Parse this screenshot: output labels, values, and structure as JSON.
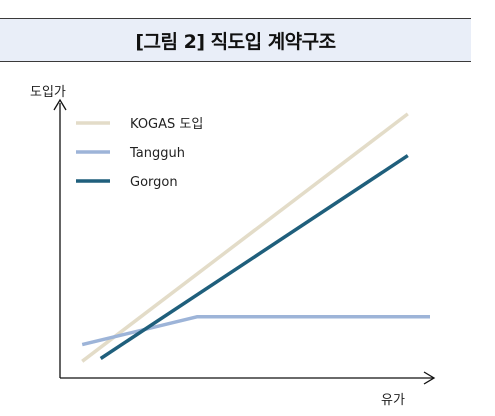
{
  "chart_data": {
    "type": "line",
    "title": "[그림 2] 직도입 계약구조",
    "xlabel": "유가",
    "ylabel": "도입가",
    "xlim": [
      0,
      100
    ],
    "ylim": [
      0,
      100
    ],
    "legend_position": "top-left",
    "series": [
      {
        "name": "KOGAS 도입",
        "color": "#e3dcc8",
        "x": [
          6,
          94
        ],
        "y": [
          6,
          95
        ]
      },
      {
        "name": "Tangguh",
        "color": "#9db4d8",
        "x": [
          6,
          37,
          100
        ],
        "y": [
          12,
          22,
          22
        ]
      },
      {
        "name": "Gorgon",
        "color": "#1f5f7c",
        "x": [
          11,
          94
        ],
        "y": [
          7,
          80
        ]
      }
    ]
  }
}
